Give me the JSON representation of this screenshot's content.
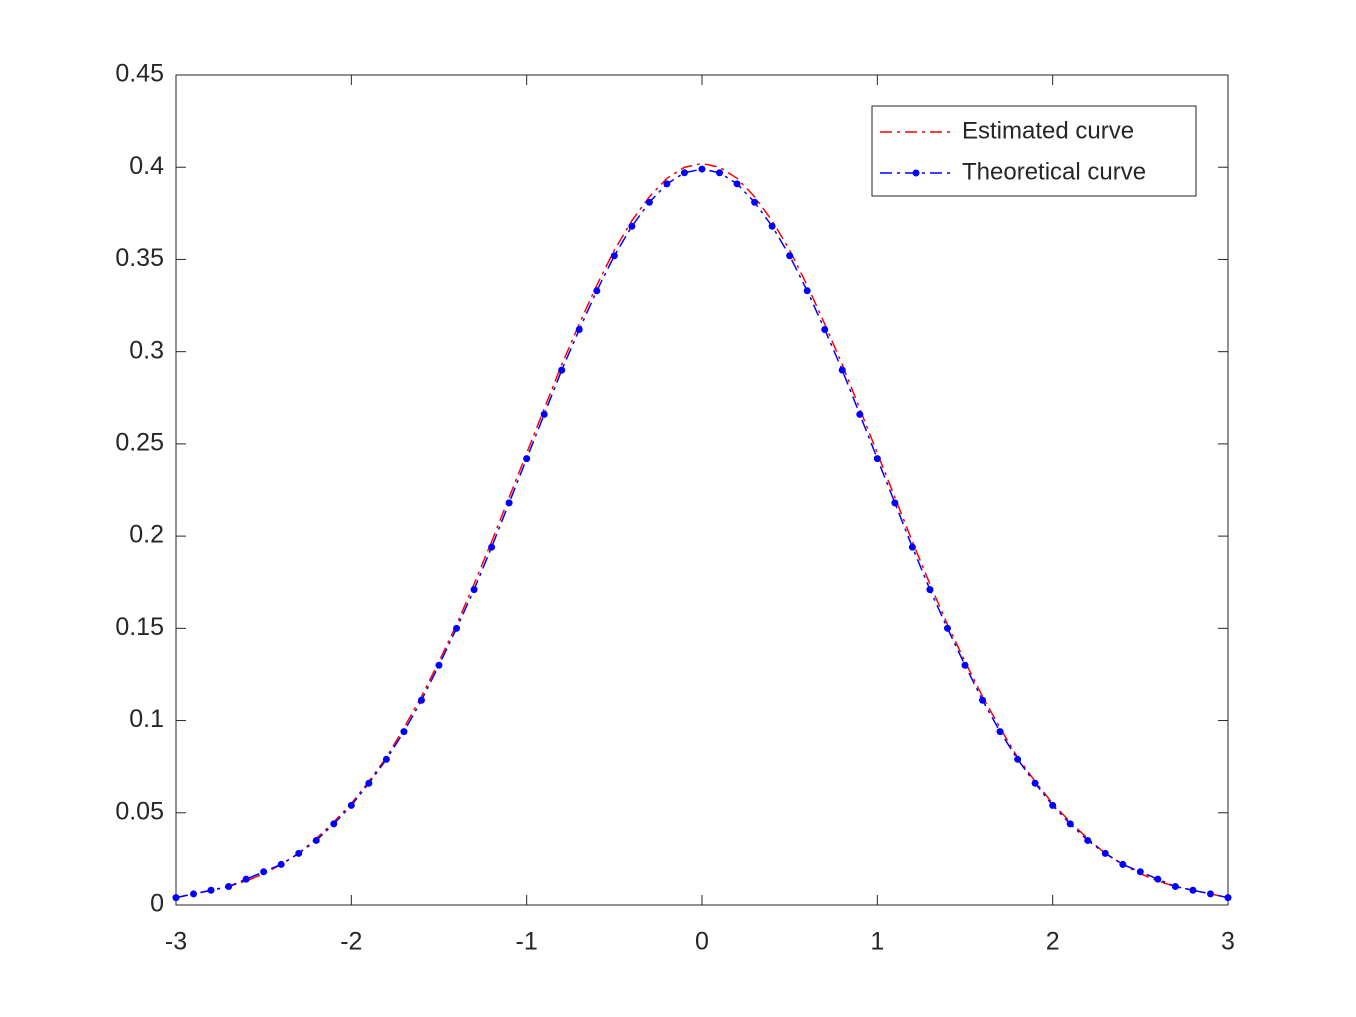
{
  "chart_data": {
    "type": "line",
    "x": [
      -3,
      -2.9,
      -2.8,
      -2.7,
      -2.6,
      -2.5,
      -2.4,
      -2.3,
      -2.2,
      -2.1,
      -2,
      -1.9,
      -1.8,
      -1.7,
      -1.6,
      -1.5,
      -1.4,
      -1.3,
      -1.2,
      -1.1,
      -1,
      -0.9,
      -0.8,
      -0.7,
      -0.6,
      -0.5,
      -0.4,
      -0.3,
      -0.2,
      -0.1,
      0,
      0.1,
      0.2,
      0.3,
      0.4,
      0.5,
      0.6,
      0.7,
      0.8,
      0.9,
      1,
      1.1,
      1.2,
      1.3,
      1.4,
      1.5,
      1.6,
      1.7,
      1.8,
      1.9,
      2,
      2.1,
      2.2,
      2.3,
      2.4,
      2.5,
      2.6,
      2.7,
      2.8,
      2.9,
      3
    ],
    "series": [
      {
        "name": "Estimated curve",
        "color": "#ff0000",
        "marker": false,
        "values": [
          0.004,
          0.006,
          0.008,
          0.01,
          0.013,
          0.017,
          0.022,
          0.028,
          0.036,
          0.045,
          0.055,
          0.067,
          0.08,
          0.096,
          0.113,
          0.132,
          0.152,
          0.174,
          0.197,
          0.221,
          0.245,
          0.269,
          0.293,
          0.315,
          0.336,
          0.355,
          0.371,
          0.384,
          0.394,
          0.4,
          0.402,
          0.4,
          0.394,
          0.384,
          0.371,
          0.355,
          0.336,
          0.315,
          0.293,
          0.269,
          0.245,
          0.221,
          0.197,
          0.174,
          0.152,
          0.132,
          0.113,
          0.096,
          0.08,
          0.067,
          0.055,
          0.045,
          0.036,
          0.028,
          0.022,
          0.017,
          0.013,
          0.01,
          0.008,
          0.006,
          0.004
        ]
      },
      {
        "name": "Theoretical curve",
        "color": "#0000ff",
        "marker": true,
        "values": [
          0.004,
          0.006,
          0.008,
          0.01,
          0.014,
          0.018,
          0.022,
          0.028,
          0.035,
          0.044,
          0.054,
          0.066,
          0.079,
          0.094,
          0.111,
          0.13,
          0.15,
          0.171,
          0.194,
          0.218,
          0.242,
          0.266,
          0.29,
          0.312,
          0.333,
          0.352,
          0.368,
          0.381,
          0.391,
          0.397,
          0.399,
          0.397,
          0.391,
          0.381,
          0.368,
          0.352,
          0.333,
          0.312,
          0.29,
          0.266,
          0.242,
          0.218,
          0.194,
          0.171,
          0.15,
          0.13,
          0.111,
          0.094,
          0.079,
          0.066,
          0.054,
          0.044,
          0.035,
          0.028,
          0.022,
          0.018,
          0.014,
          0.01,
          0.008,
          0.006,
          0.004
        ]
      }
    ],
    "xlim": [
      -3,
      3
    ],
    "xticks": [
      -3,
      -2,
      -1,
      0,
      1,
      2,
      3
    ],
    "ylim": [
      0,
      0.45
    ],
    "yticks": [
      0,
      0.05,
      0.1,
      0.15,
      0.2,
      0.25,
      0.3,
      0.35,
      0.4,
      0.45
    ],
    "legend": "upper right"
  }
}
